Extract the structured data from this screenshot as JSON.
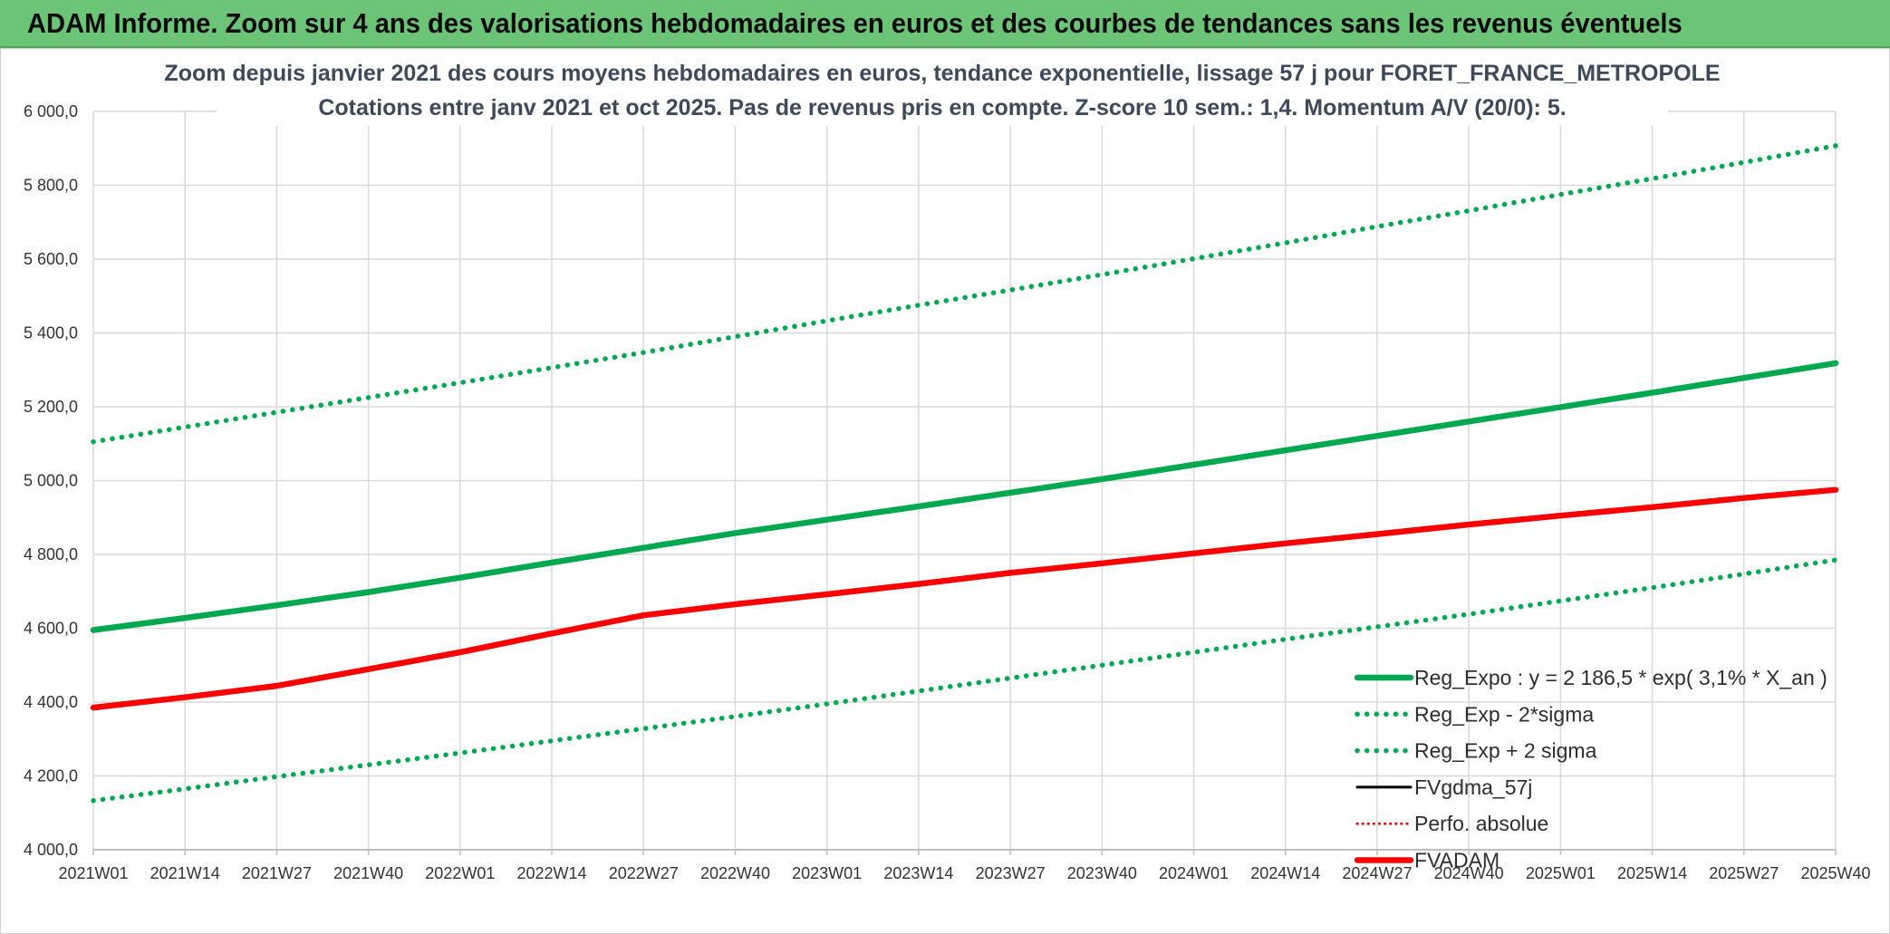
{
  "banner": {
    "title": "ADAM Informe. Zoom sur 4 ans des valorisations hebdomadaires en euros et des courbes de tendances sans les revenus éventuels"
  },
  "colors": {
    "banner_bg": "#6cc476",
    "green": "#00a94f",
    "red": "#ff0000",
    "black": "#000000",
    "grid": "#d9d9d9",
    "title_text": "#3e4a5c"
  },
  "chart_data": {
    "type": "line",
    "title_line1": "Zoom depuis janvier 2021 des cours moyens hebdomadaires en euros, tendance exponentielle, lissage 57 j pour FORET_FRANCE_METROPOLE",
    "title_line2": "Cotations entre janv 2021 et oct 2025. Pas de revenus pris en compte. Z-score 10 sem.: 1,4. Momentum A/V (20/0): 5.",
    "xlabel": "",
    "ylabel": "",
    "ylim": [
      4000,
      6000
    ],
    "ytick_values": [
      4000,
      4200,
      4400,
      4600,
      4800,
      5000,
      5200,
      5400,
      5600,
      5800,
      6000
    ],
    "ytick_labels": [
      "4 000,0",
      "4 200,0",
      "4 400,0",
      "4 600,0",
      "4 800,0",
      "5 000,0",
      "5 200,0",
      "5 400,0",
      "5 600,0",
      "5 800,0",
      "6 000,0"
    ],
    "x_categories": [
      "2021W01",
      "2021W14",
      "2021W27",
      "2021W40",
      "2022W01",
      "2022W14",
      "2022W27",
      "2022W40",
      "2023W01",
      "2023W14",
      "2023W27",
      "2023W40",
      "2024W01",
      "2024W14",
      "2024W27",
      "2024W40",
      "2025W01",
      "2025W14",
      "2025W27",
      "2025W40"
    ],
    "grid": true,
    "legend_position": "bottom-right",
    "series": [
      {
        "name": "Reg_Expo : y = 2 186,5 * exp( 3,1% *  X_an )",
        "style": "solid-thick",
        "color": "#00a94f",
        "values": [
          4595,
          4628,
          4662,
          4698,
          4737,
          4778,
          4818,
          4858,
          4894,
          4930,
          4967,
          5004,
          5043,
          5082,
          5121,
          5160,
          5199,
          5238,
          5278,
          5318
        ]
      },
      {
        "name": "Reg_Exp - 2*sigma",
        "style": "dotted",
        "color": "#00a94f",
        "values": [
          4133,
          4165,
          4198,
          4230,
          4262,
          4295,
          4328,
          4361,
          4395,
          4430,
          4465,
          4500,
          4535,
          4570,
          4604,
          4638,
          4674,
          4710,
          4747,
          4785
        ]
      },
      {
        "name": "Reg_Exp + 2 sigma",
        "style": "dotted",
        "color": "#00a94f",
        "values": [
          5105,
          5145,
          5185,
          5225,
          5265,
          5306,
          5347,
          5390,
          5433,
          5475,
          5516,
          5558,
          5601,
          5644,
          5688,
          5731,
          5775,
          5818,
          5862,
          5907
        ]
      },
      {
        "name": "FVgdma_57j",
        "style": "solid",
        "color": "#000000",
        "values": [
          4385,
          4413,
          4444,
          4489,
          4535,
          4586,
          4635,
          4665,
          4692,
          4720,
          4750,
          4776,
          4803,
          4830,
          4855,
          4881,
          4905,
          4928,
          4953,
          4975
        ]
      },
      {
        "name": "Perfo. absolue",
        "style": "dotted-thin",
        "color": "#ff0000",
        "values": [
          4385,
          4413,
          4444,
          4489,
          4535,
          4586,
          4635,
          4665,
          4692,
          4720,
          4750,
          4776,
          4803,
          4830,
          4855,
          4881,
          4905,
          4928,
          4953,
          4975
        ]
      },
      {
        "name": "FVADAM",
        "style": "solid-thick",
        "color": "#ff0000",
        "values": [
          4385,
          4413,
          4444,
          4489,
          4535,
          4586,
          4635,
          4665,
          4692,
          4720,
          4750,
          4776,
          4803,
          4830,
          4855,
          4881,
          4905,
          4928,
          4953,
          4975
        ]
      }
    ]
  }
}
